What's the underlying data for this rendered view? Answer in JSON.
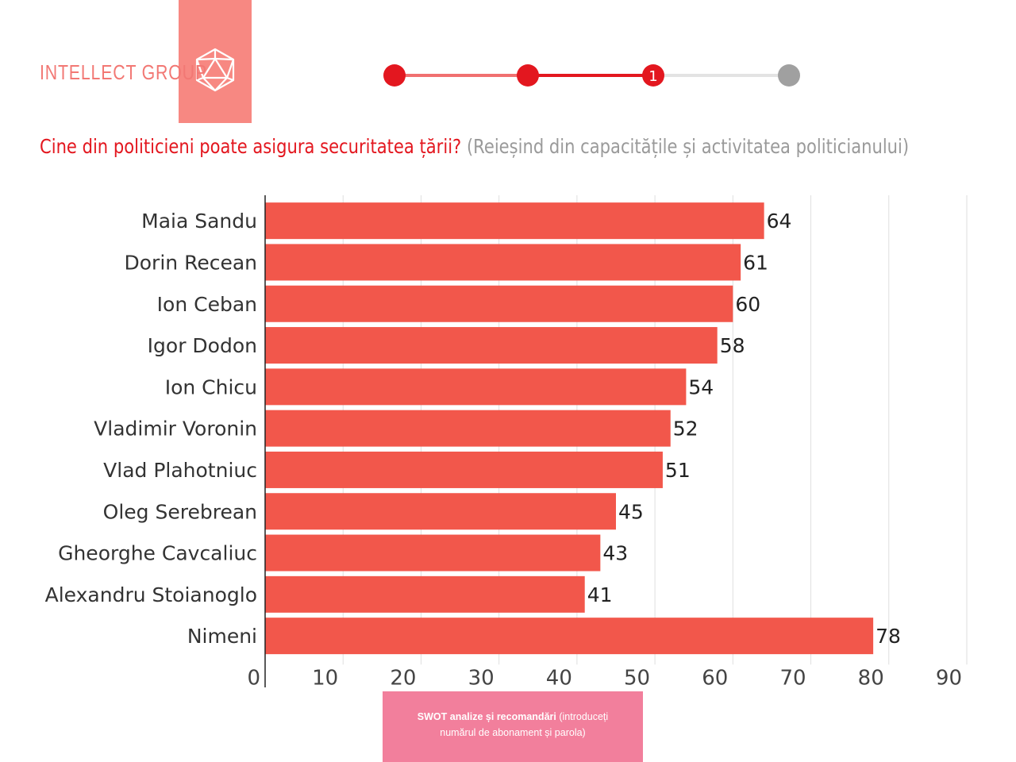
{
  "header": {
    "brand": "INTELLECT GROUP",
    "logo": "icosahedron-icon",
    "stepper": {
      "current_label": "1",
      "colors": {
        "done": "#e3171f",
        "inactive": "#a0a0a0"
      }
    }
  },
  "title": {
    "question": "Cine din politicieni poate asigura securitatea țării?",
    "subtitle": "(Reieșind din capacitățile și activitatea politicianului)"
  },
  "chart_data": {
    "type": "bar",
    "orientation": "horizontal",
    "categories": [
      "Maia Sandu",
      "Dorin Recean",
      "Ion Ceban",
      "Igor Dodon",
      "Ion Chicu",
      "Vladimir Voronin",
      "Vlad Plahotniuc",
      "Oleg Serebrean",
      "Gheorghe Cavcaliuc",
      "Alexandru Stoianoglo",
      "Nimeni"
    ],
    "values": [
      64,
      61,
      60,
      58,
      54,
      52,
      51,
      45,
      43,
      41,
      78
    ],
    "xlim": [
      0,
      90
    ],
    "xticks": [
      0,
      10,
      20,
      30,
      40,
      50,
      60,
      70,
      80,
      90
    ],
    "grid": true,
    "bar_color": "#f2574b"
  },
  "footer": {
    "button_bold": "SWOT analize și recomandări",
    "button_rest": "(introduceți numărul de abonament și parola)"
  }
}
